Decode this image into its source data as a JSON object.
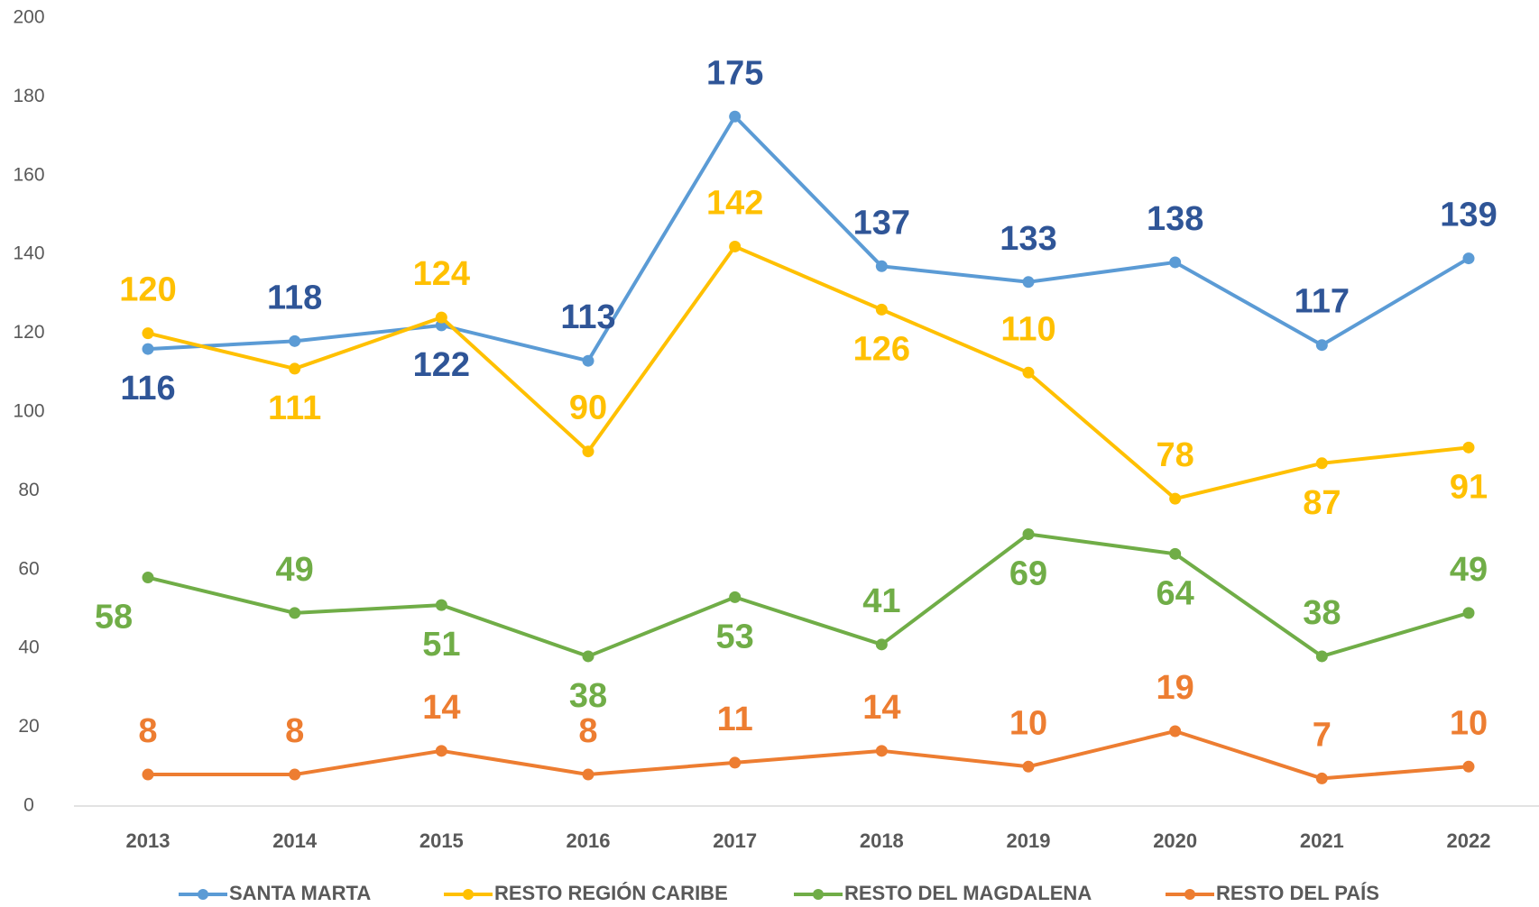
{
  "chart_data": {
    "type": "line",
    "categories": [
      "2013",
      "2014",
      "2015",
      "2016",
      "2017",
      "2018",
      "2019",
      "2020",
      "2021",
      "2022"
    ],
    "ylim": [
      0,
      200
    ],
    "yticks": [
      0,
      20,
      40,
      60,
      80,
      100,
      120,
      140,
      160,
      180,
      200
    ],
    "legend": "bottom",
    "series": [
      {
        "name": "SANTA MARTA",
        "color": "#5b9bd5",
        "label_color": "#2f5597",
        "values": [
          116,
          118,
          122,
          113,
          175,
          137,
          133,
          138,
          117,
          139
        ]
      },
      {
        "name": "RESTO REGIÓN CARIBE",
        "color": "#ffc000",
        "label_color": "#ffc000",
        "values": [
          120,
          111,
          124,
          90,
          142,
          126,
          110,
          78,
          87,
          91
        ]
      },
      {
        "name": "RESTO DEL MAGDALENA",
        "color": "#70ad47",
        "label_color": "#70ad47",
        "values": [
          58,
          49,
          51,
          38,
          53,
          41,
          69,
          64,
          38,
          49
        ]
      },
      {
        "name": "RESTO DEL PAÍS",
        "color": "#ed7d31",
        "label_color": "#ed7d31",
        "values": [
          8,
          8,
          14,
          8,
          11,
          14,
          10,
          19,
          7,
          10
        ]
      }
    ]
  }
}
